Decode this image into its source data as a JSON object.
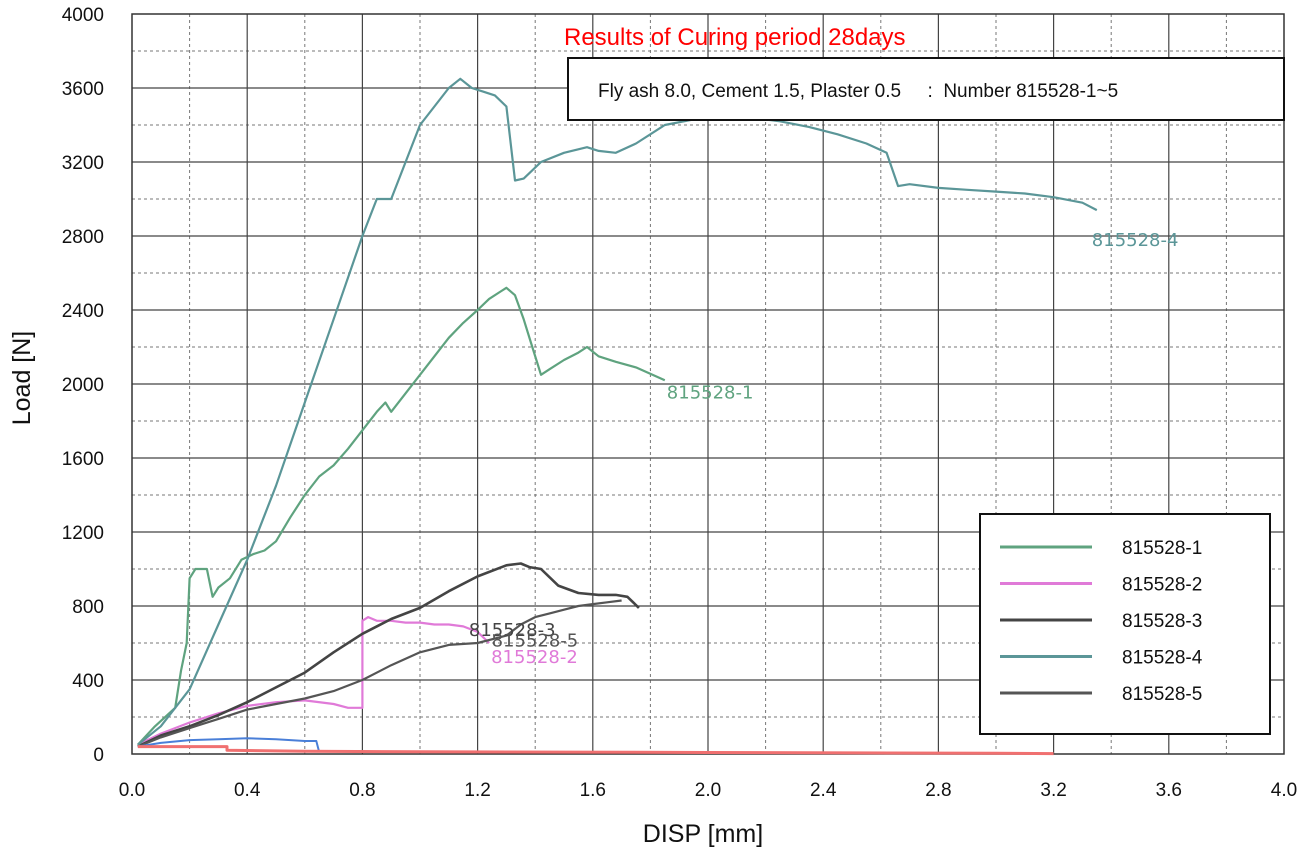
{
  "chart_data": {
    "type": "line",
    "title": "Results of Curing period 28days",
    "subtitle": "Fly ash 8.0, Cement 1.5, Plaster 0.5     :  Number 815528-1~5",
    "xlabel": "DISP [mm]",
    "ylabel": "Load [N]",
    "xlim": [
      0,
      4.0
    ],
    "ylim": [
      0,
      4000
    ],
    "x_ticks": [
      "0.0",
      "0.4",
      "0.8",
      "1.2",
      "1.6",
      "2.0",
      "2.4",
      "2.8",
      "3.2",
      "3.6",
      "4.0"
    ],
    "y_ticks": [
      "0",
      "400",
      "800",
      "1200",
      "1600",
      "2000",
      "2400",
      "2800",
      "3200",
      "3600",
      "4000"
    ],
    "grid": true,
    "legend_position": "bottom-right",
    "colors": {
      "title": "#ff0000",
      "series_1": "#5fa37f",
      "series_2": "#e07ad8",
      "series_3": "#444444",
      "series_4": "#5b9698",
      "series_5": "#555555",
      "blue_trace": "#4a7fd8",
      "red_trace": "#f07070"
    },
    "series": [
      {
        "name": "815528-1",
        "end_label": "815528-1",
        "x": [
          0.02,
          0.08,
          0.15,
          0.17,
          0.19,
          0.2,
          0.22,
          0.26,
          0.28,
          0.3,
          0.34,
          0.38,
          0.42,
          0.46,
          0.5,
          0.55,
          0.6,
          0.65,
          0.7,
          0.75,
          0.8,
          0.85,
          0.88,
          0.9,
          0.95,
          1.0,
          1.05,
          1.1,
          1.15,
          1.2,
          1.24,
          1.28,
          1.3,
          1.33,
          1.36,
          1.39,
          1.42,
          1.45,
          1.5,
          1.55,
          1.58,
          1.62,
          1.68,
          1.75,
          1.85
        ],
        "y": [
          50,
          150,
          250,
          450,
          600,
          950,
          1000,
          1000,
          850,
          900,
          950,
          1050,
          1080,
          1100,
          1150,
          1280,
          1400,
          1500,
          1560,
          1650,
          1750,
          1850,
          1900,
          1850,
          1950,
          2050,
          2150,
          2250,
          2330,
          2400,
          2460,
          2500,
          2520,
          2480,
          2350,
          2200,
          2050,
          2080,
          2130,
          2170,
          2200,
          2150,
          2120,
          2090,
          2020
        ]
      },
      {
        "name": "815528-2",
        "end_label": "815528-2",
        "x": [
          0.02,
          0.1,
          0.2,
          0.3,
          0.4,
          0.5,
          0.6,
          0.7,
          0.75,
          0.8,
          0.8,
          0.82,
          0.85,
          0.9,
          0.95,
          1.0,
          1.05,
          1.1,
          1.15,
          1.2,
          1.24
        ],
        "y": [
          50,
          110,
          170,
          220,
          260,
          280,
          290,
          270,
          250,
          250,
          720,
          740,
          720,
          720,
          710,
          710,
          700,
          700,
          690,
          660,
          600
        ]
      },
      {
        "name": "815528-3",
        "end_label": "815528-3",
        "x": [
          0.02,
          0.1,
          0.2,
          0.3,
          0.4,
          0.5,
          0.6,
          0.7,
          0.8,
          0.9,
          1.0,
          1.1,
          1.2,
          1.3,
          1.35,
          1.38,
          1.42,
          1.48,
          1.55,
          1.62,
          1.68,
          1.72,
          1.76
        ],
        "y": [
          40,
          100,
          150,
          210,
          280,
          360,
          440,
          550,
          650,
          730,
          790,
          880,
          960,
          1020,
          1030,
          1010,
          1000,
          910,
          870,
          860,
          860,
          850,
          790
        ]
      },
      {
        "name": "815528-4",
        "end_label": "815528-4",
        "x": [
          0.02,
          0.1,
          0.2,
          0.3,
          0.4,
          0.5,
          0.6,
          0.7,
          0.8,
          0.85,
          0.9,
          0.95,
          1.0,
          1.05,
          1.1,
          1.14,
          1.18,
          1.22,
          1.26,
          1.3,
          1.33,
          1.36,
          1.42,
          1.5,
          1.58,
          1.62,
          1.68,
          1.75,
          1.85,
          1.95,
          2.05,
          2.15,
          2.25,
          2.35,
          2.45,
          2.55,
          2.62,
          2.66,
          2.7,
          2.8,
          2.9,
          3.0,
          3.1,
          3.2,
          3.3,
          3.35
        ],
        "y": [
          50,
          150,
          350,
          700,
          1050,
          1450,
          1900,
          2350,
          2800,
          3000,
          3000,
          3200,
          3400,
          3500,
          3600,
          3650,
          3600,
          3580,
          3560,
          3500,
          3100,
          3110,
          3200,
          3250,
          3280,
          3260,
          3250,
          3300,
          3400,
          3430,
          3450,
          3440,
          3420,
          3390,
          3350,
          3300,
          3250,
          3070,
          3080,
          3060,
          3050,
          3040,
          3030,
          3010,
          2980,
          2940
        ]
      },
      {
        "name": "815528-5",
        "end_label": "815528-5",
        "x": [
          0.02,
          0.1,
          0.2,
          0.3,
          0.4,
          0.5,
          0.6,
          0.7,
          0.8,
          0.9,
          1.0,
          1.1,
          1.2,
          1.3,
          1.35,
          1.4,
          1.45,
          1.5,
          1.55,
          1.6,
          1.65,
          1.7
        ],
        "y": [
          40,
          90,
          140,
          190,
          240,
          270,
          300,
          340,
          400,
          480,
          550,
          590,
          600,
          640,
          700,
          740,
          760,
          780,
          800,
          810,
          820,
          830
        ]
      },
      {
        "name": "",
        "x": [
          0.02,
          0.1,
          0.2,
          0.3,
          0.4,
          0.5,
          0.6,
          0.64,
          0.65
        ],
        "y": [
          40,
          60,
          75,
          80,
          85,
          80,
          70,
          70,
          10
        ]
      },
      {
        "name": "",
        "x": [
          0.02,
          0.3,
          0.32,
          0.33,
          0.33,
          0.6,
          1.0,
          1.5,
          2.0,
          2.5,
          3.0,
          3.2
        ],
        "y": [
          40,
          40,
          40,
          40,
          20,
          15,
          12,
          10,
          8,
          6,
          4,
          2
        ]
      }
    ]
  }
}
